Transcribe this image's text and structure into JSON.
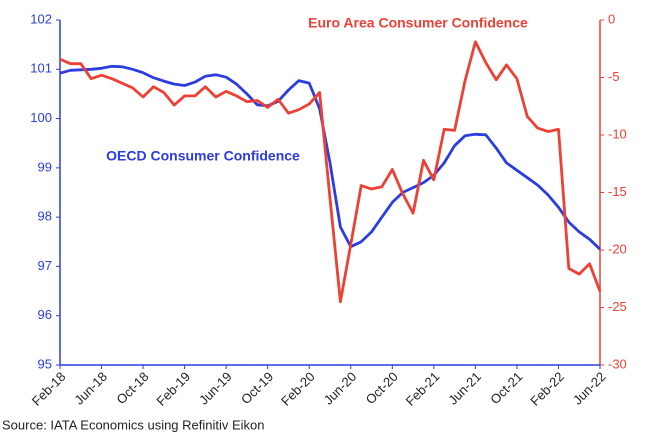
{
  "chart_data": {
    "type": "line",
    "source": "Source: IATA Economics using Refinitiv Eikon",
    "categories": [
      "Feb-18",
      null,
      null,
      null,
      "Jun-18",
      null,
      null,
      null,
      "Oct-18",
      null,
      null,
      null,
      "Feb-19",
      null,
      null,
      null,
      "Jun-19",
      null,
      null,
      null,
      "Oct-19",
      null,
      null,
      null,
      "Feb-20",
      null,
      null,
      null,
      "Jun-20",
      null,
      null,
      null,
      "Oct-20",
      null,
      null,
      null,
      "Feb-21",
      null,
      null,
      null,
      "Jun-21",
      null,
      null,
      null,
      "Oct-21",
      null,
      null,
      null,
      "Feb-22",
      null,
      null,
      null,
      "Jun-22"
    ],
    "series": [
      {
        "name": "OECD Consumer Confidence",
        "color": "#2b3de0",
        "axis": "y",
        "values": [
          100.92,
          100.98,
          100.99,
          101.0,
          101.02,
          101.06,
          101.05,
          101.0,
          100.93,
          100.83,
          100.76,
          100.7,
          100.67,
          100.74,
          100.86,
          100.89,
          100.84,
          100.7,
          100.5,
          100.28,
          100.26,
          100.35,
          100.58,
          100.77,
          100.72,
          100.2,
          99.1,
          97.8,
          97.4,
          97.5,
          97.7,
          98.0,
          98.3,
          98.5,
          98.6,
          98.7,
          98.85,
          99.1,
          99.45,
          99.65,
          99.68,
          99.67,
          99.4,
          99.1,
          98.95,
          98.8,
          98.65,
          98.45,
          98.2,
          97.9,
          97.7,
          97.55,
          97.35
        ]
      },
      {
        "name": "Euro Area Consumer Confidence",
        "color": "#ee4035",
        "axis": "y2",
        "values": [
          -3.4,
          -3.8,
          -3.8,
          -5.1,
          -4.8,
          -5.1,
          -5.5,
          -5.9,
          -6.7,
          -5.8,
          -6.3,
          -7.4,
          -6.6,
          -6.6,
          -5.8,
          -6.7,
          -6.2,
          -6.6,
          -7.1,
          -7.0,
          -7.6,
          -6.9,
          -8.1,
          -7.8,
          -7.3,
          -6.3,
          -15.5,
          -24.5,
          -19.5,
          -14.4,
          -14.7,
          -14.5,
          -13.0,
          -15.1,
          -16.8,
          -12.2,
          -13.9,
          -9.5,
          -9.6,
          -5.3,
          -1.9,
          -3.7,
          -5.2,
          -3.9,
          -5.1,
          -8.4,
          -9.4,
          -9.7,
          -9.5,
          -21.6,
          -22.1,
          -21.2,
          -23.6
        ]
      }
    ],
    "ylim": [
      95,
      102
    ],
    "yticks": [
      95,
      96,
      97,
      98,
      99,
      100,
      101,
      102
    ],
    "y2lim": [
      -30,
      0
    ],
    "y2ticks": [
      -30,
      -25,
      -20,
      -15,
      -10,
      -5,
      0
    ],
    "grid": false
  }
}
